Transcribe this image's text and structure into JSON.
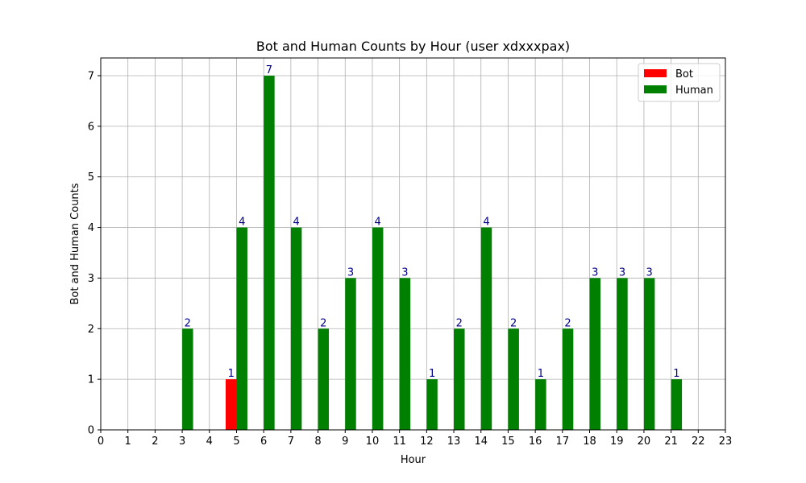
{
  "chart_data": {
    "type": "bar",
    "title": "Bot and Human Counts by Hour (user xdxxxpax)",
    "xlabel": "Hour",
    "ylabel": "Bot and Human Counts",
    "x_ticks": [
      "0",
      "1",
      "2",
      "3",
      "4",
      "5",
      "6",
      "7",
      "8",
      "9",
      "10",
      "11",
      "12",
      "13",
      "14",
      "15",
      "16",
      "17",
      "18",
      "19",
      "20",
      "21",
      "22",
      "23"
    ],
    "y_ticks": [
      "0",
      "1",
      "2",
      "3",
      "4",
      "5",
      "6",
      "7"
    ],
    "xlim": [
      0,
      23
    ],
    "ylim": [
      0,
      7.35
    ],
    "grid": true,
    "legend_position": "top-right",
    "series": [
      {
        "name": "Bot",
        "color": "#ff0000",
        "points": [
          {
            "hour": 5,
            "value": 1
          }
        ]
      },
      {
        "name": "Human",
        "color": "#008000",
        "points": [
          {
            "hour": 3,
            "value": 2
          },
          {
            "hour": 5,
            "value": 4
          },
          {
            "hour": 6,
            "value": 7
          },
          {
            "hour": 7,
            "value": 4
          },
          {
            "hour": 8,
            "value": 2
          },
          {
            "hour": 9,
            "value": 3
          },
          {
            "hour": 10,
            "value": 4
          },
          {
            "hour": 11,
            "value": 3
          },
          {
            "hour": 12,
            "value": 1
          },
          {
            "hour": 13,
            "value": 2
          },
          {
            "hour": 14,
            "value": 4
          },
          {
            "hour": 15,
            "value": 2
          },
          {
            "hour": 16,
            "value": 1
          },
          {
            "hour": 17,
            "value": 2
          },
          {
            "hour": 18,
            "value": 3
          },
          {
            "hour": 19,
            "value": 3
          },
          {
            "hour": 20,
            "value": 3
          },
          {
            "hour": 21,
            "value": 1
          }
        ]
      }
    ],
    "data_label_color": "#00008b"
  }
}
